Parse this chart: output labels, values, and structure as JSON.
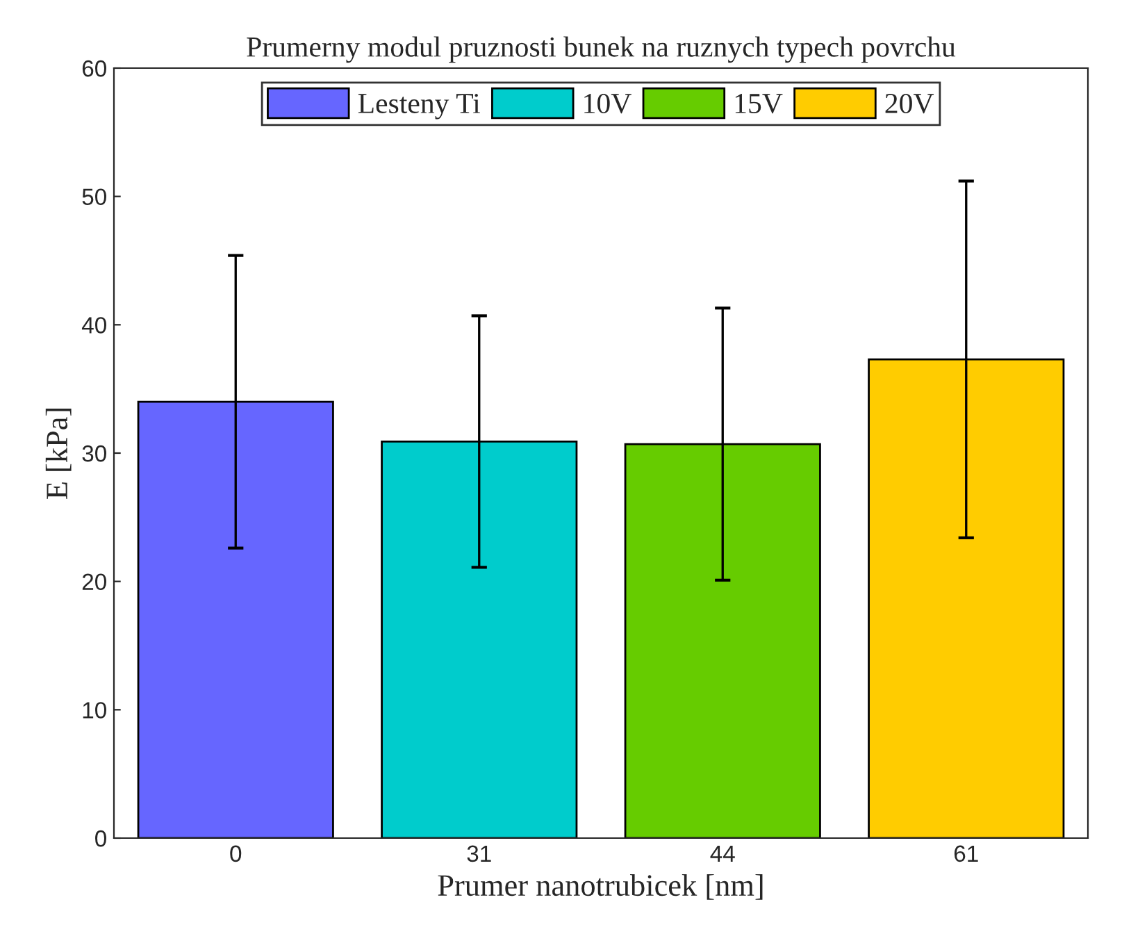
{
  "chart_data": {
    "type": "bar",
    "title": "Prumerny modul pruznosti bunek na ruznych typech povrchu",
    "xlabel": "Prumer nanotrubicek [nm]",
    "ylabel": "E [kPa]",
    "categories": [
      "0",
      "31",
      "44",
      "61"
    ],
    "series": [
      {
        "name": "Lesteny Ti",
        "color": "#6666ff",
        "values": [
          34.0,
          null,
          null,
          null
        ],
        "errors": [
          11.4,
          null,
          null,
          null
        ]
      },
      {
        "name": "10V",
        "color": "#00cccc",
        "values": [
          null,
          30.9,
          null,
          null
        ],
        "errors": [
          null,
          9.8,
          null,
          null
        ]
      },
      {
        "name": "15V",
        "color": "#66cc00",
        "values": [
          null,
          null,
          30.7,
          null
        ],
        "errors": [
          null,
          null,
          10.6,
          null
        ]
      },
      {
        "name": "20V",
        "color": "#ffcc00",
        "values": [
          null,
          null,
          null,
          37.3
        ],
        "errors": [
          null,
          null,
          null,
          13.9
        ]
      }
    ],
    "ylim": [
      0,
      60
    ],
    "yticks": [
      0,
      10,
      20,
      30,
      40,
      50,
      60
    ],
    "grid": false,
    "legend": "top"
  }
}
